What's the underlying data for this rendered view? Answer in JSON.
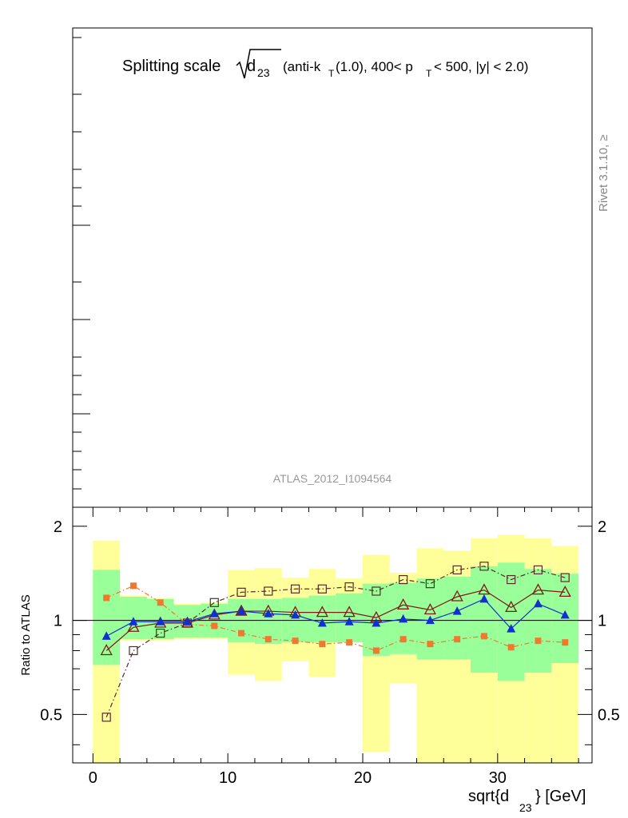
{
  "title": {
    "prefix": "Splitting scale",
    "sqrt_arg": "d",
    "sqrt_arg_sub": "23",
    "selection_1": "(anti-k",
    "selection_1_sub": "T",
    "selection_2": "(1.0), 400< p",
    "selection_2_sub": "T",
    "selection_3": "< 500, |y| < 2.0)"
  },
  "side_label": "Rivet 3.1.10, ≥",
  "analysis_label": "ATLAS_2012_I1094564",
  "ylabel": "Ratio to ATLAS",
  "xlabel": {
    "prefix": "sqrt{d",
    "sub": "23",
    "suffix": "} [GeV]"
  },
  "chart_data": {
    "type": "line",
    "xlim": [
      -1.5,
      37
    ],
    "ylim": [
      0.35,
      2.3
    ],
    "x_ticks": [
      0,
      10,
      20,
      30
    ],
    "x_tick_labels": [
      "0",
      "10",
      "20",
      "30"
    ],
    "y_ticks": [
      0.5,
      1,
      2
    ],
    "y_tick_labels": [
      "0.5",
      "1",
      "2"
    ],
    "reference_line": 1,
    "bins": [
      {
        "lo": 0,
        "hi": 2,
        "green": [
          0.72,
          1.45
        ],
        "yellow": [
          0.35,
          1.8
        ]
      },
      {
        "lo": 2,
        "hi": 4,
        "green": [
          0.87,
          1.19
        ],
        "yellow": [
          0.86,
          1.2
        ]
      },
      {
        "lo": 4,
        "hi": 6,
        "green": [
          0.87,
          1.17
        ],
        "yellow": [
          0.86,
          1.18
        ]
      },
      {
        "lo": 6,
        "hi": 8,
        "green": [
          0.88,
          1.12
        ],
        "yellow": [
          0.87,
          1.13
        ]
      },
      {
        "lo": 8,
        "hi": 10,
        "green": [
          0.88,
          1.13
        ],
        "yellow": [
          0.87,
          1.14
        ]
      },
      {
        "lo": 10,
        "hi": 12,
        "green": [
          0.85,
          1.17
        ],
        "yellow": [
          0.67,
          1.45
        ]
      },
      {
        "lo": 12,
        "hi": 14,
        "green": [
          0.84,
          1.17
        ],
        "yellow": [
          0.64,
          1.47
        ]
      },
      {
        "lo": 14,
        "hi": 16,
        "green": [
          0.85,
          1.18
        ],
        "yellow": [
          0.74,
          1.37
        ]
      },
      {
        "lo": 16,
        "hi": 18,
        "green": [
          0.85,
          1.2
        ],
        "yellow": [
          0.66,
          1.46
        ]
      },
      {
        "lo": 18,
        "hi": 20,
        "green": [
          0.85,
          1.22
        ],
        "yellow": [
          0.88,
          1.36
        ]
      },
      {
        "lo": 20,
        "hi": 22,
        "green": [
          0.77,
          1.31
        ],
        "yellow": [
          0.38,
          1.62
        ]
      },
      {
        "lo": 22,
        "hi": 24,
        "green": [
          0.78,
          1.32
        ],
        "yellow": [
          0.63,
          1.42
        ]
      },
      {
        "lo": 24,
        "hi": 26,
        "green": [
          0.75,
          1.36
        ],
        "yellow": [
          0.35,
          1.7
        ]
      },
      {
        "lo": 26,
        "hi": 28,
        "green": [
          0.75,
          1.38
        ],
        "yellow": [
          0.35,
          1.67
        ]
      },
      {
        "lo": 28,
        "hi": 30,
        "green": [
          0.68,
          1.49
        ],
        "yellow": [
          0.35,
          1.83
        ]
      },
      {
        "lo": 30,
        "hi": 32,
        "green": [
          0.64,
          1.53
        ],
        "yellow": [
          0.35,
          1.88
        ]
      },
      {
        "lo": 32,
        "hi": 34,
        "green": [
          0.68,
          1.46
        ],
        "yellow": [
          0.35,
          1.83
        ]
      },
      {
        "lo": 34,
        "hi": 36,
        "green": [
          0.73,
          1.41
        ],
        "yellow": [
          0.35,
          1.73
        ]
      }
    ],
    "x": [
      1,
      3,
      5,
      7,
      9,
      11,
      13,
      15,
      17,
      19,
      21,
      23,
      25,
      27,
      29,
      31,
      33,
      35
    ],
    "series": [
      {
        "marker": "open-square",
        "color": "#5a2a2a",
        "line": "dashdot",
        "values": [
          0.49,
          0.8,
          0.91,
          0.98,
          1.14,
          1.23,
          1.24,
          1.26,
          1.26,
          1.28,
          1.24,
          1.35,
          1.31,
          1.45,
          1.49,
          1.35,
          1.45,
          1.37
        ]
      },
      {
        "marker": "filled-square",
        "color": "#f07830",
        "line": "dashdot",
        "values": [
          1.18,
          1.29,
          1.14,
          0.97,
          0.96,
          0.91,
          0.87,
          0.86,
          0.84,
          0.85,
          0.8,
          0.87,
          0.84,
          0.87,
          0.89,
          0.82,
          0.86,
          0.85
        ]
      },
      {
        "marker": "open-triangle",
        "color": "#801818",
        "line": "solid",
        "values": [
          0.8,
          0.95,
          0.98,
          0.98,
          1.04,
          1.07,
          1.07,
          1.06,
          1.06,
          1.06,
          1.02,
          1.12,
          1.08,
          1.19,
          1.25,
          1.1,
          1.25,
          1.23
        ]
      },
      {
        "marker": "filled-triangle",
        "color": "#1030d0",
        "line": "solid",
        "values": [
          0.89,
          0.99,
          0.99,
          0.99,
          1.05,
          1.07,
          1.05,
          1.04,
          0.98,
          0.99,
          0.98,
          1.01,
          1.0,
          1.07,
          1.17,
          0.94,
          1.13,
          1.04
        ]
      }
    ],
    "band_colors": {
      "outer": "#ffff99",
      "inner": "#99ff99"
    }
  }
}
